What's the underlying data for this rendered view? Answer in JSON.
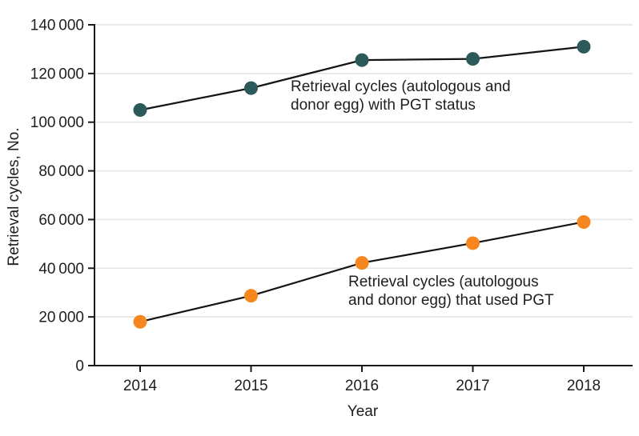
{
  "chart_data": {
    "type": "line",
    "x": [
      "2014",
      "2015",
      "2016",
      "2017",
      "2018"
    ],
    "series": [
      {
        "name": "Retrieval cycles (autologous and donor egg) with PGT status",
        "color": "#2c5959",
        "values": [
          105000,
          114000,
          125500,
          126000,
          131000
        ]
      },
      {
        "name": "Retrieval cycles (autologous and donor egg) that used PGT",
        "color": "#f6871f",
        "values": [
          18000,
          28700,
          42200,
          50300,
          59000
        ]
      }
    ],
    "title": "",
    "xlabel": "Year",
    "ylabel": "Retrieval cycles, No.",
    "ylim": [
      0,
      140000
    ],
    "ytick_step": 20000,
    "ytick_labels": [
      "0",
      "20 000",
      "40 000",
      "60 000",
      "80 000",
      "100 000",
      "120 000",
      "140 000"
    ],
    "grid": "horizontal-only",
    "legend_position": "in-plot-annotations",
    "annotations": [
      {
        "lines": [
          "Retrieval cycles (autologous and",
          "donor egg) with PGT status"
        ]
      },
      {
        "lines": [
          "Retrieval cycles (autologous",
          "and donor egg) that used PGT"
        ]
      }
    ],
    "axis_color": "#1a1a1a",
    "line_color": "#141414",
    "grid_color": "#e3e3e3",
    "text_color": "#1e1e1e"
  }
}
